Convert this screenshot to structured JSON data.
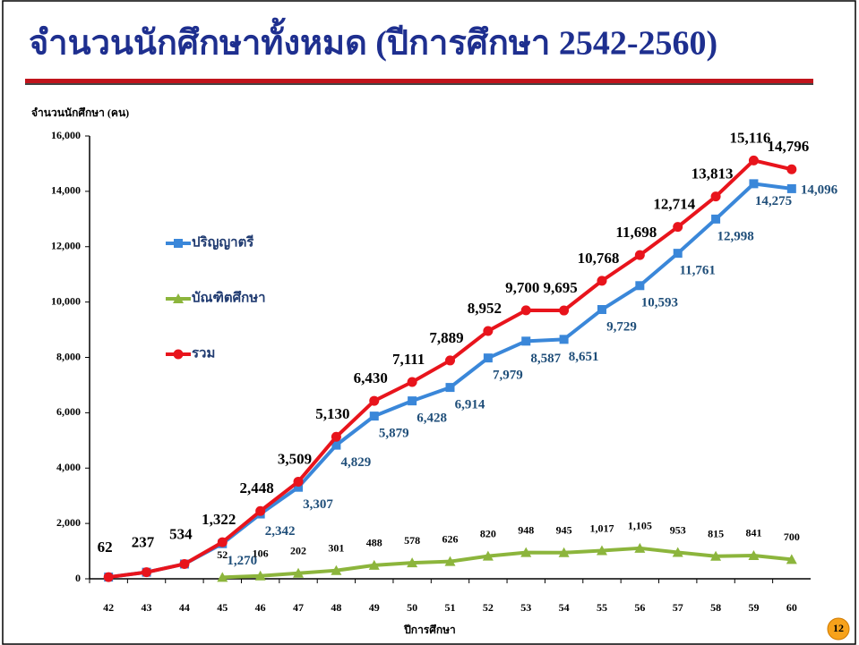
{
  "chart_data": {
    "type": "line",
    "title": "จำนวนนักศึกษาทั้งหมด (ปีการศึกษา 2542-2560)",
    "y_label": "จำนวนนักศึกษา (คน)",
    "x_label": "ปีการศึกษา",
    "categories": [
      "42",
      "43",
      "44",
      "45",
      "46",
      "47",
      "48",
      "49",
      "50",
      "51",
      "52",
      "53",
      "54",
      "55",
      "56",
      "57",
      "58",
      "59",
      "60"
    ],
    "ylim": [
      0,
      16000
    ],
    "yticks": [
      0,
      {
        "value": 2000,
        "label": "2,000"
      },
      {
        "value": 4000,
        "label": "4,000"
      },
      {
        "value": 6000,
        "label": "6,000"
      },
      {
        "value": 8000,
        "label": "8,000"
      },
      {
        "value": 10000,
        "label": "10,000"
      },
      {
        "value": 12000,
        "label": "12,000"
      },
      {
        "value": 14000,
        "label": "14,000"
      },
      {
        "value": 16000,
        "label": "16,000"
      }
    ],
    "grid": false,
    "series": [
      {
        "name": "ปริญญาตรี",
        "color": "#3a87d9",
        "marker": "square",
        "values": [
          62,
          237,
          534,
          1270,
          2342,
          3307,
          4829,
          5879,
          6428,
          6914,
          7979,
          8587,
          8651,
          9729,
          10593,
          11761,
          12998,
          14275,
          14096
        ],
        "value_labels": [
          null,
          null,
          null,
          "1,270",
          "2,342",
          "3,307",
          "4,829",
          "5,879",
          "6,428",
          "6,914",
          "7,979",
          "8,587",
          "8,651",
          "9,729",
          "10,593",
          "11,761",
          "12,998",
          "14,275",
          "14,096"
        ]
      },
      {
        "name": "บัณฑิตศึกษา",
        "color": "#8cb53c",
        "marker": "triangle",
        "values": [
          null,
          null,
          null,
          52,
          106,
          202,
          301,
          488,
          578,
          626,
          820,
          948,
          945,
          1017,
          1105,
          953,
          815,
          841,
          700
        ],
        "value_labels": [
          null,
          null,
          null,
          "52",
          "106",
          "202",
          "301",
          "488",
          "578",
          "626",
          "820",
          "948",
          "945",
          "1,017",
          "1,105",
          "953",
          "815",
          "841",
          "700"
        ]
      },
      {
        "name": "รวม",
        "color": "#e8141c",
        "marker": "circle",
        "values": [
          62,
          237,
          534,
          1322,
          2448,
          3509,
          5130,
          6430,
          7111,
          7889,
          8952,
          9700,
          9695,
          10768,
          11698,
          12714,
          13813,
          15116,
          14796
        ],
        "value_labels": [
          "62",
          "237",
          "534",
          "1,322",
          "2,448",
          "3,509",
          "5,130",
          "6,430",
          "7,111",
          "7,889",
          "8,952",
          "9,700",
          "9,695",
          "10,768",
          "11,698",
          "12,714",
          "13,813",
          "15,116",
          "14,796"
        ]
      }
    ]
  },
  "page_number": "12"
}
